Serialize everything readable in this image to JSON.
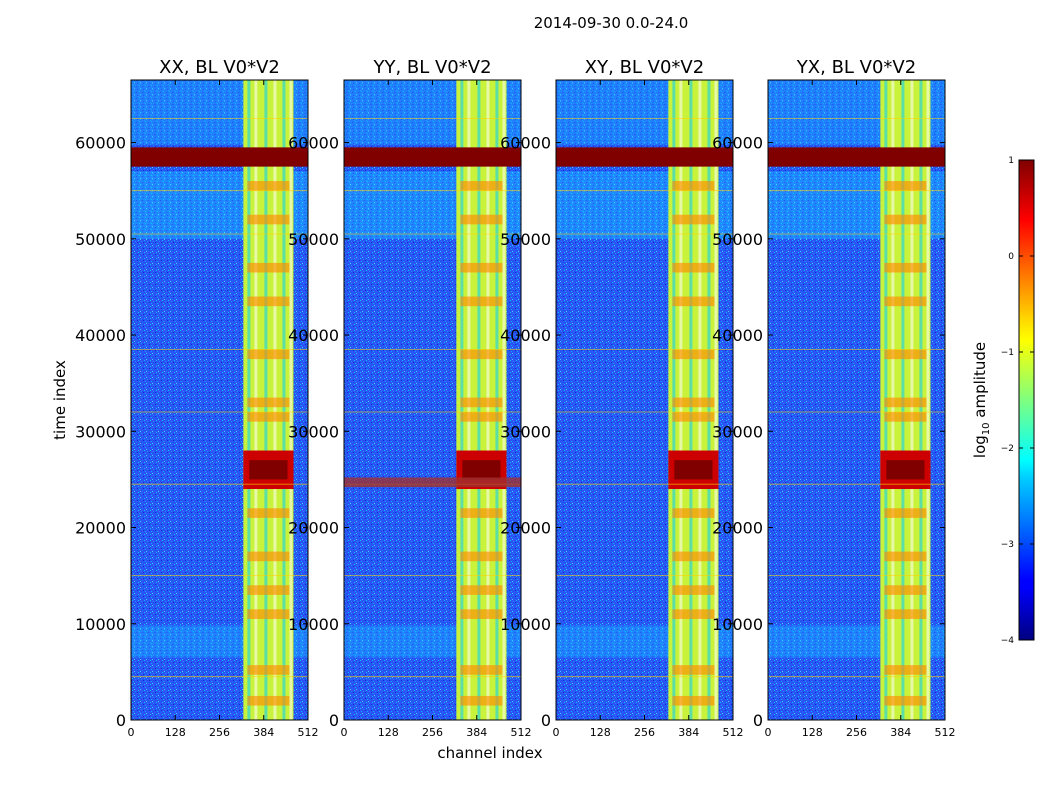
{
  "figure": {
    "suptitle": "2014-09-30 0.0-24.0"
  },
  "chart_data": {
    "type": "heatmap",
    "title": "2014-09-30 0.0-24.0",
    "xlabel": "channel index",
    "ylabel": "time index",
    "xlim": [
      0,
      512
    ],
    "ylim": [
      0,
      66500
    ],
    "xticks": [
      0,
      128,
      256,
      384,
      512
    ],
    "yticks": [
      0,
      10000,
      20000,
      30000,
      40000,
      50000,
      60000
    ],
    "ytick_labels": [
      "0",
      "10000",
      "20000",
      "30000",
      "40000",
      "50000",
      "60000"
    ],
    "xtick_labels": [
      "0",
      "128",
      "256",
      "384",
      "512"
    ],
    "panels": [
      {
        "title": "XX, BL V0*V2",
        "polarization": "XX"
      },
      {
        "title": "YY, BL V0*V2",
        "polarization": "YY"
      },
      {
        "title": "XY, BL V0*V2",
        "polarization": "XY"
      },
      {
        "title": "YX, BL V0*V2",
        "polarization": "YX"
      }
    ],
    "colorbar": {
      "label_main": "log",
      "label_sub": "10",
      "label_rest": " amplitude",
      "range": [
        -4,
        1
      ],
      "ticks": [
        1,
        0,
        -1,
        -2,
        -3,
        -4
      ],
      "tick_labels": [
        "1",
        "0",
        "−1",
        "−2",
        "−3",
        "−4"
      ],
      "colormap": "jet"
    },
    "features": {
      "rfi_channel_band": [
        325,
        470
      ],
      "saturated_time_rows": [
        57500,
        59500
      ],
      "strong_rfi_time_range": [
        24000,
        28000
      ],
      "quiet_background_log_amplitude": -3
    }
  },
  "colors": {
    "background_low": "#2a50ff",
    "rfi_band": "#c9f23a",
    "saturated": "#800000",
    "hot_spot": "#cc0000",
    "orange_spot": "#ff8c00"
  }
}
